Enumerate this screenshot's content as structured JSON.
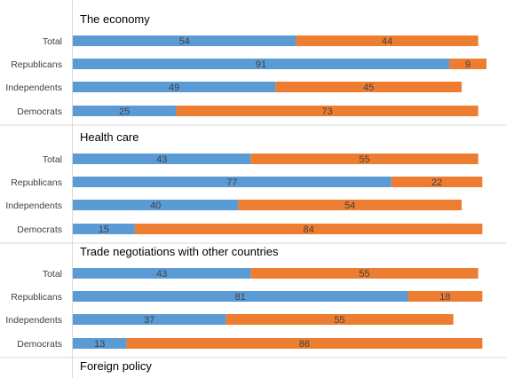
{
  "colors": {
    "approve": "#5b9bd5",
    "disapprove": "#ed7d31",
    "axis": "#bfbfbf",
    "text": "#404040",
    "title": "#000000"
  },
  "groups": [
    "Total",
    "Republicans",
    "Independents",
    "Democrats"
  ],
  "chart_data": [
    {
      "type": "bar",
      "title": "The economy",
      "categories": [
        "Total",
        "Republicans",
        "Independents",
        "Democrats"
      ],
      "series": [
        {
          "values": [
            54,
            91,
            49,
            25
          ]
        },
        {
          "values": [
            44,
            9,
            45,
            73
          ]
        }
      ],
      "xlim": [
        0,
        100
      ]
    },
    {
      "type": "bar",
      "title": "Health care",
      "categories": [
        "Total",
        "Republicans",
        "Independents",
        "Democrats"
      ],
      "series": [
        {
          "values": [
            43,
            77,
            40,
            15
          ]
        },
        {
          "values": [
            55,
            22,
            54,
            84
          ]
        }
      ],
      "xlim": [
        0,
        100
      ]
    },
    {
      "type": "bar",
      "title": "Trade negotiations with other countries",
      "categories": [
        "Total",
        "Republicans",
        "Independents",
        "Democrats"
      ],
      "series": [
        {
          "values": [
            43,
            81,
            37,
            13
          ]
        },
        {
          "values": [
            55,
            18,
            55,
            86
          ]
        }
      ],
      "xlim": [
        0,
        100
      ]
    },
    {
      "type": "bar",
      "title": "Foreign policy",
      "categories": [],
      "series": []
    }
  ]
}
